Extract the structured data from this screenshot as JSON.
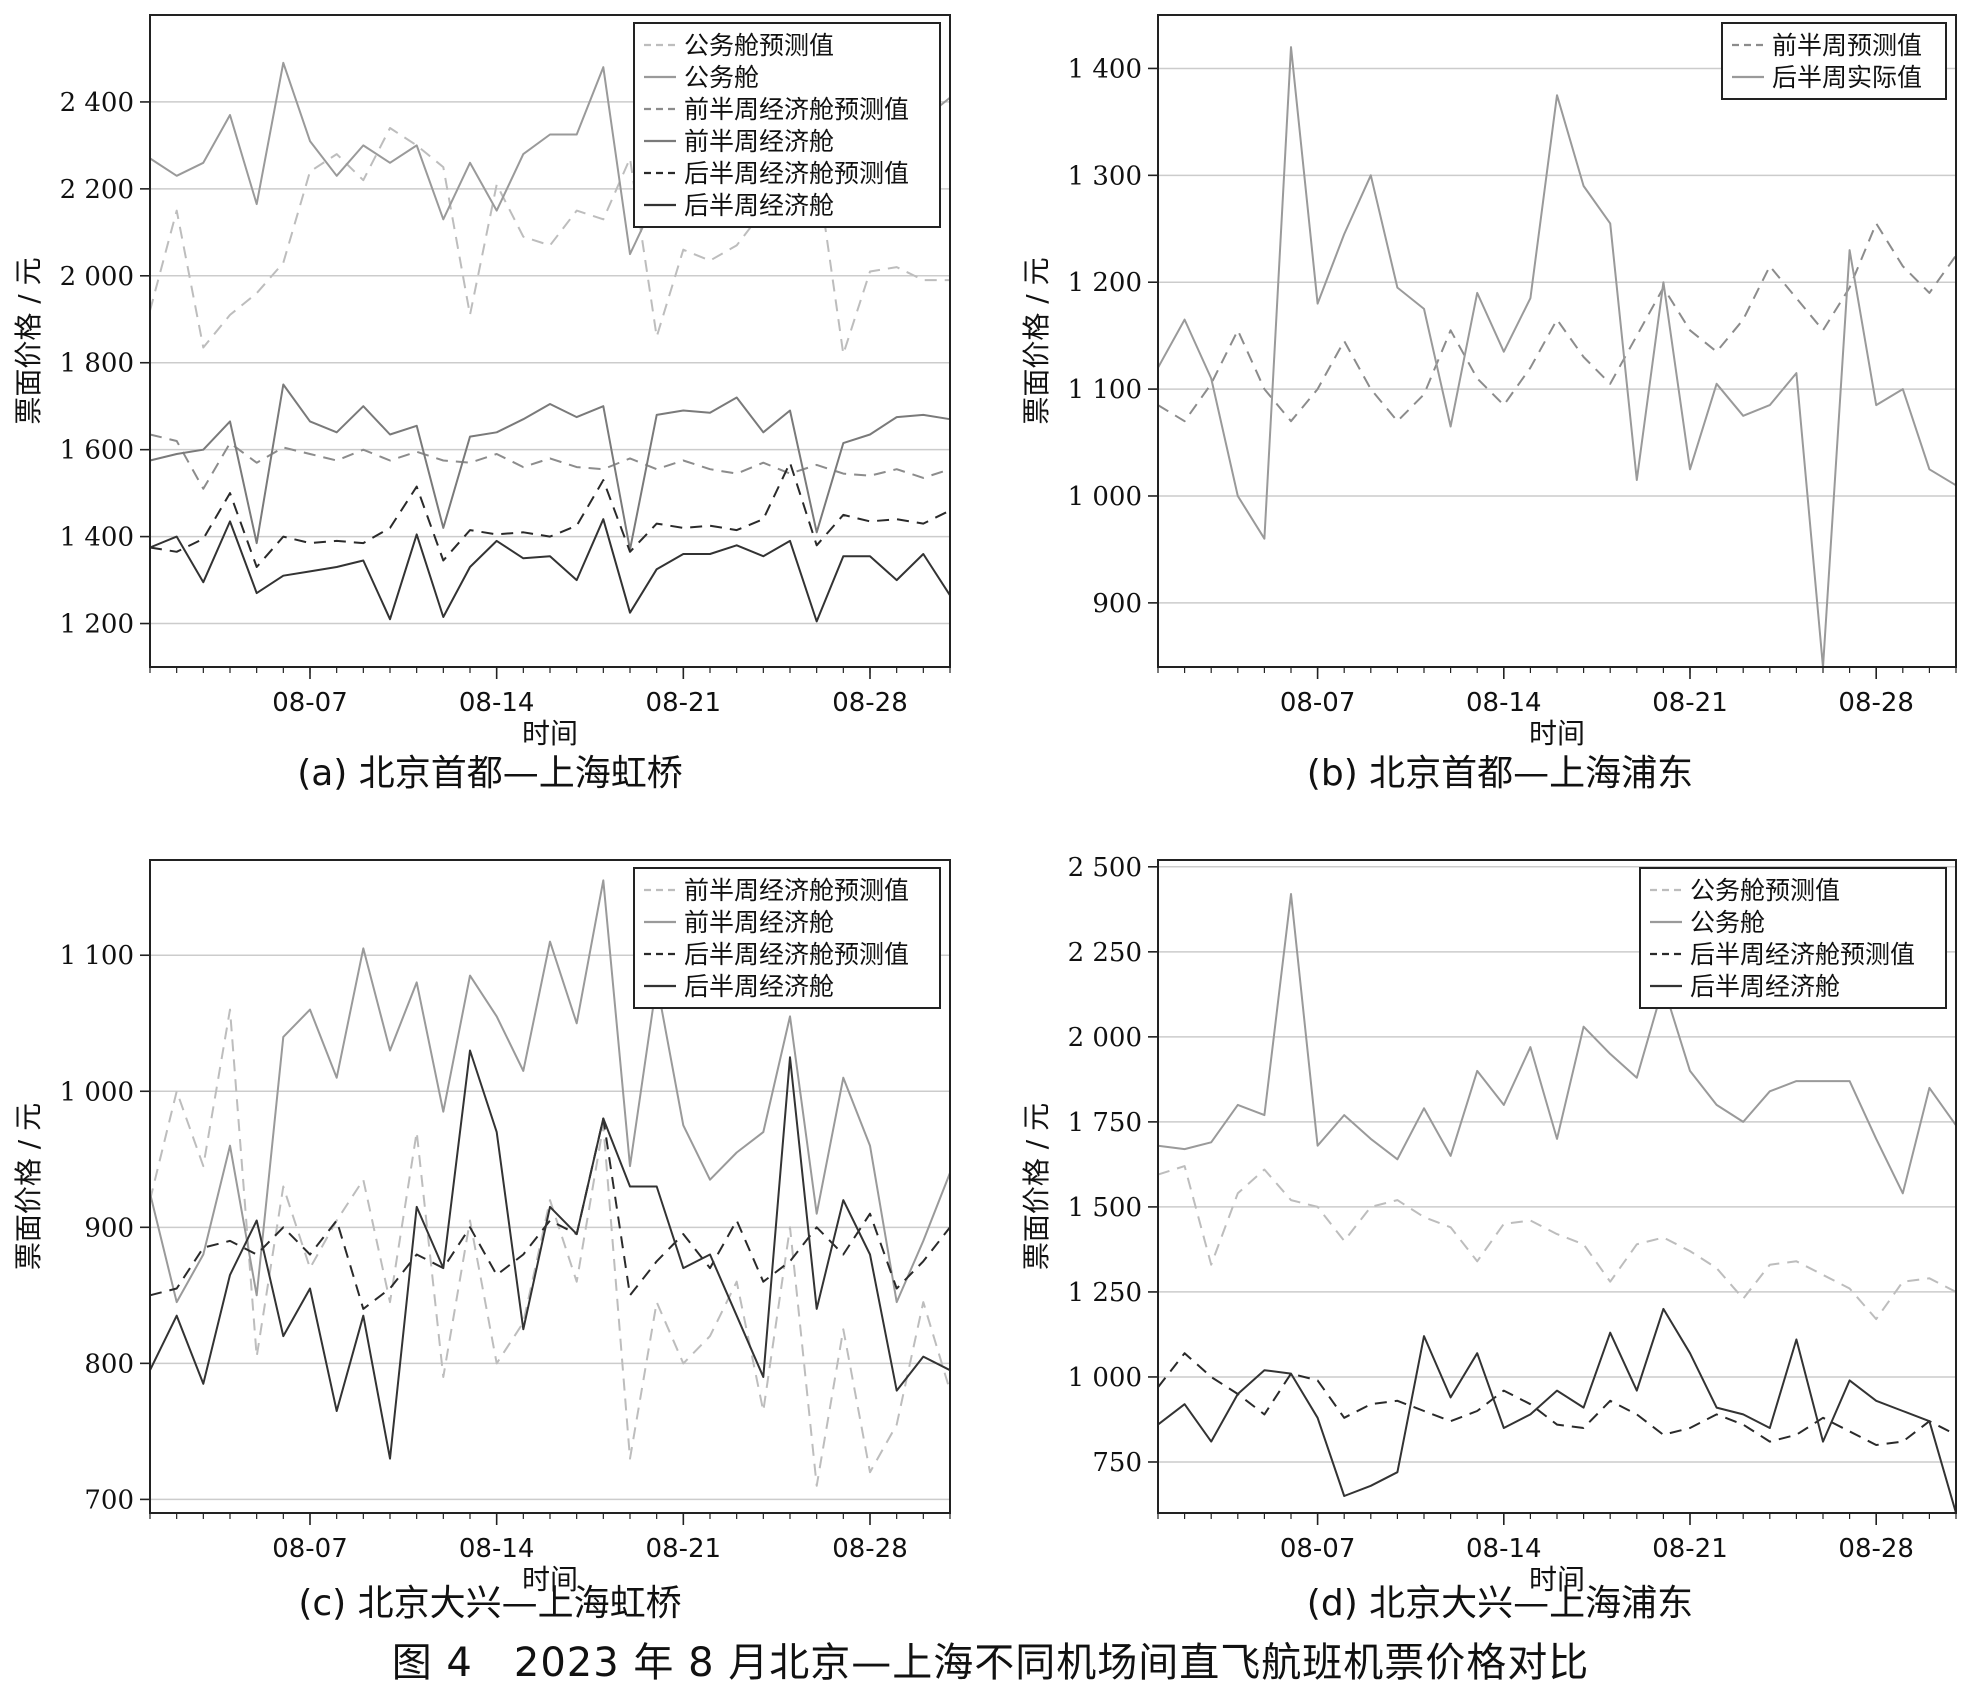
{
  "figure_caption": "图 4　2023 年 8 月北京—上海不同机场间直飞航班机票价格对比",
  "colors": {
    "business_pred": "#bdbdbd",
    "business": "#9a9a9a",
    "front_pred": "#8c8c8c",
    "front": "#7a7a7a",
    "back_pred": "#2a2a2a",
    "back": "#333333",
    "grid": "#cccccc",
    "axis": "#222222"
  },
  "chart_data": [
    {
      "id": "a",
      "type": "line",
      "caption": "(a) 北京首都—上海虹桥",
      "xlabel": "时间",
      "ylabel": "票面价格 / 元",
      "x_start_day": 1,
      "x_end_day": 31,
      "xticks": [
        "08-07",
        "08-14",
        "08-21",
        "08-28"
      ],
      "xtick_days": [
        7,
        14,
        21,
        28
      ],
      "ylim": [
        1100,
        2600
      ],
      "yticks": [
        "1 200",
        "1 400",
        "1 600",
        "1 800",
        "2 000",
        "2 200",
        "2 400"
      ],
      "ytick_values": [
        1200,
        1400,
        1600,
        1800,
        2000,
        2200,
        2400
      ],
      "grid": true,
      "legend_position": "top-right",
      "series": [
        {
          "name": "公务舱预测值",
          "style": "business_pred",
          "values": [
            1920,
            2150,
            1835,
            1910,
            1960,
            2030,
            2240,
            2280,
            2220,
            2340,
            2300,
            2250,
            1910,
            2210,
            2090,
            2070,
            2150,
            2130,
            2270,
            1860,
            2060,
            2035,
            2070,
            2150,
            2160,
            2250,
            1820,
            2010,
            2020,
            1990,
            1990
          ]
        },
        {
          "name": "公务舱",
          "style": "business",
          "values": [
            2270,
            2230,
            2260,
            2370,
            2165,
            2490,
            2310,
            2230,
            2300,
            2260,
            2300,
            2130,
            2260,
            2150,
            2280,
            2325,
            2325,
            2480,
            2050,
            2180,
            2220,
            2220,
            2270,
            2240,
            2260,
            2260,
            2200,
            2240,
            2240,
            2360,
            2410
          ]
        },
        {
          "name": "前半周经济舱预测值",
          "style": "front_pred",
          "values": [
            1635,
            1620,
            1510,
            1615,
            1570,
            1605,
            1590,
            1575,
            1600,
            1575,
            1595,
            1575,
            1570,
            1590,
            1560,
            1580,
            1560,
            1555,
            1580,
            1555,
            1575,
            1555,
            1545,
            1570,
            1545,
            1565,
            1545,
            1540,
            1555,
            1535,
            1555
          ]
        },
        {
          "name": "前半周经济舱",
          "style": "front",
          "values": [
            1575,
            1590,
            1600,
            1665,
            1385,
            1750,
            1665,
            1640,
            1700,
            1635,
            1655,
            1420,
            1630,
            1640,
            1670,
            1705,
            1675,
            1700,
            1370,
            1680,
            1690,
            1685,
            1720,
            1640,
            1690,
            1410,
            1615,
            1635,
            1675,
            1680,
            1670
          ]
        },
        {
          "name": "后半周经济舱预测值",
          "style": "back_pred",
          "values": [
            1375,
            1365,
            1395,
            1500,
            1330,
            1400,
            1385,
            1390,
            1385,
            1420,
            1515,
            1345,
            1415,
            1405,
            1410,
            1400,
            1425,
            1530,
            1365,
            1430,
            1420,
            1425,
            1415,
            1440,
            1570,
            1380,
            1450,
            1435,
            1440,
            1430,
            1460
          ]
        },
        {
          "name": "后半周经济舱",
          "style": "back",
          "values": [
            1375,
            1400,
            1295,
            1435,
            1270,
            1310,
            1320,
            1330,
            1345,
            1210,
            1405,
            1215,
            1330,
            1390,
            1350,
            1355,
            1300,
            1440,
            1225,
            1325,
            1360,
            1360,
            1380,
            1355,
            1390,
            1205,
            1355,
            1355,
            1300,
            1360,
            1265
          ]
        }
      ]
    },
    {
      "id": "b",
      "type": "line",
      "caption": "(b) 北京首都—上海浦东",
      "xlabel": "时间",
      "ylabel": "票面价格 / 元",
      "x_start_day": 1,
      "x_end_day": 31,
      "xticks": [
        "08-07",
        "08-14",
        "08-21",
        "08-28"
      ],
      "xtick_days": [
        7,
        14,
        21,
        28
      ],
      "ylim": [
        840,
        1450
      ],
      "yticks": [
        "900",
        "1 000",
        "1 100",
        "1 200",
        "1 300",
        "1 400"
      ],
      "ytick_values": [
        900,
        1000,
        1100,
        1200,
        1300,
        1400
      ],
      "grid": true,
      "legend_position": "top-right",
      "series": [
        {
          "name": "前半周预测值",
          "style": "front_pred",
          "values": [
            1085,
            1070,
            1105,
            1155,
            1100,
            1070,
            1100,
            1145,
            1100,
            1070,
            1095,
            1155,
            1110,
            1085,
            1120,
            1165,
            1130,
            1105,
            1150,
            1195,
            1155,
            1135,
            1165,
            1215,
            1185,
            1155,
            1195,
            1255,
            1215,
            1190,
            1225
          ]
        },
        {
          "name": "后半周实际值",
          "style": "business",
          "values": [
            1120,
            1165,
            1110,
            1000,
            960,
            1420,
            1180,
            1245,
            1300,
            1195,
            1175,
            1065,
            1190,
            1135,
            1185,
            1375,
            1290,
            1255,
            1015,
            1200,
            1025,
            1105,
            1075,
            1085,
            1115,
            840,
            1230,
            1085,
            1100,
            1025,
            1010
          ]
        }
      ]
    },
    {
      "id": "c",
      "type": "line",
      "caption": "(c) 北京大兴—上海虹桥",
      "xlabel": "时间",
      "ylabel": "票面价格 / 元",
      "x_start_day": 1,
      "x_end_day": 31,
      "xticks": [
        "08-07",
        "08-14",
        "08-21",
        "08-28"
      ],
      "xtick_days": [
        7,
        14,
        21,
        28
      ],
      "ylim": [
        690,
        1170
      ],
      "yticks": [
        "700",
        "800",
        "900",
        "1 000",
        "1 100"
      ],
      "ytick_values": [
        700,
        800,
        900,
        1000,
        1100
      ],
      "grid": true,
      "legend_position": "top-right",
      "series": [
        {
          "name": "前半周经济舱预测值",
          "style": "business_pred",
          "values": [
            920,
            1000,
            945,
            1060,
            805,
            930,
            870,
            905,
            935,
            845,
            970,
            790,
            905,
            800,
            830,
            920,
            860,
            975,
            730,
            845,
            800,
            820,
            860,
            765,
            900,
            710,
            825,
            720,
            755,
            845,
            780
          ]
        },
        {
          "name": "前半周经济舱",
          "style": "business",
          "values": [
            925,
            845,
            880,
            960,
            850,
            1040,
            1060,
            1010,
            1105,
            1030,
            1080,
            985,
            1085,
            1055,
            1015,
            1110,
            1050,
            1155,
            945,
            1080,
            975,
            935,
            955,
            970,
            1055,
            910,
            1010,
            960,
            845,
            890,
            940
          ]
        },
        {
          "name": "后半周经济舱预测值",
          "style": "back_pred",
          "values": [
            850,
            855,
            885,
            890,
            880,
            900,
            880,
            905,
            840,
            855,
            880,
            870,
            900,
            865,
            880,
            905,
            895,
            980,
            850,
            875,
            895,
            870,
            905,
            860,
            875,
            900,
            880,
            910,
            855,
            875,
            900
          ]
        },
        {
          "name": "后半周经济舱",
          "style": "back",
          "values": [
            795,
            835,
            785,
            865,
            905,
            820,
            855,
            765,
            835,
            730,
            915,
            870,
            1030,
            970,
            825,
            915,
            895,
            980,
            930,
            930,
            870,
            880,
            835,
            790,
            1025,
            840,
            920,
            880,
            780,
            805,
            795
          ]
        }
      ]
    },
    {
      "id": "d",
      "type": "line",
      "caption": "(d) 北京大兴—上海浦东",
      "xlabel": "时间",
      "ylabel": "票面价格 / 元",
      "x_start_day": 1,
      "x_end_day": 31,
      "xticks": [
        "08-07",
        "08-14",
        "08-21",
        "08-28"
      ],
      "xtick_days": [
        7,
        14,
        21,
        28
      ],
      "ylim": [
        600,
        2520
      ],
      "yticks": [
        "750",
        "1 000",
        "1 250",
        "1 500",
        "1 750",
        "2 000",
        "2 250",
        "2 500"
      ],
      "ytick_values": [
        750,
        1000,
        1250,
        1500,
        1750,
        2000,
        2250,
        2500
      ],
      "grid": true,
      "legend_position": "top-right",
      "series": [
        {
          "name": "公务舱预测值",
          "style": "business_pred",
          "values": [
            1595,
            1620,
            1330,
            1540,
            1610,
            1520,
            1500,
            1400,
            1500,
            1520,
            1470,
            1440,
            1340,
            1450,
            1460,
            1420,
            1390,
            1280,
            1390,
            1410,
            1370,
            1320,
            1230,
            1330,
            1340,
            1300,
            1260,
            1170,
            1280,
            1290,
            1250
          ]
        },
        {
          "name": "公务舱",
          "style": "business",
          "values": [
            1680,
            1670,
            1690,
            1800,
            1770,
            2420,
            1680,
            1770,
            1700,
            1640,
            1790,
            1650,
            1900,
            1800,
            1970,
            1700,
            2030,
            1950,
            1880,
            2150,
            1900,
            1800,
            1750,
            1840,
            1870,
            1870,
            1870,
            1700,
            1540,
            1850,
            1740
          ]
        },
        {
          "name": "后半周经济舱预测值",
          "style": "back_pred",
          "values": [
            970,
            1070,
            1000,
            950,
            890,
            1010,
            990,
            880,
            920,
            930,
            900,
            870,
            900,
            960,
            920,
            860,
            850,
            930,
            890,
            830,
            850,
            890,
            860,
            810,
            830,
            880,
            840,
            800,
            810,
            870,
            830
          ]
        },
        {
          "name": "后半周经济舱",
          "style": "back",
          "values": [
            860,
            920,
            810,
            950,
            1020,
            1010,
            880,
            650,
            680,
            720,
            1120,
            940,
            1070,
            850,
            890,
            960,
            910,
            1130,
            960,
            1200,
            1070,
            910,
            890,
            850,
            1110,
            810,
            990,
            930,
            900,
            870,
            600
          ]
        }
      ]
    }
  ]
}
